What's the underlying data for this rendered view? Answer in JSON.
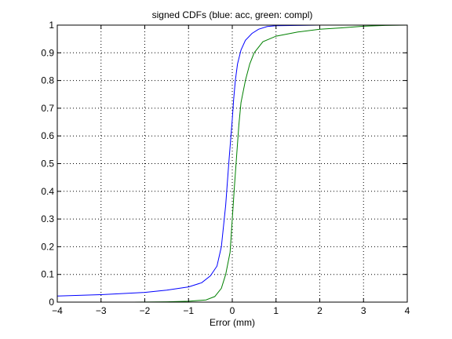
{
  "chart_data": {
    "type": "line",
    "title": "signed CDFs (blue: acc, green: compl)",
    "xlabel": "Error (mm)",
    "ylabel": "",
    "xlim": [
      -4,
      4
    ],
    "ylim": [
      0,
      1
    ],
    "xticks": [
      -4,
      -3,
      -2,
      -1,
      0,
      1,
      2,
      3,
      4
    ],
    "yticks": [
      0,
      0.1,
      0.2,
      0.3,
      0.4,
      0.5,
      0.6,
      0.7,
      0.8,
      0.9,
      1
    ],
    "grid": true,
    "colors": {
      "acc": "#0000ff",
      "compl": "#008000"
    },
    "series": [
      {
        "key": "acc",
        "color": "#0000ff",
        "x": [
          -4.0,
          -3.0,
          -2.0,
          -1.5,
          -1.0,
          -0.7,
          -0.5,
          -0.35,
          -0.25,
          -0.15,
          -0.08,
          -0.03,
          0.0,
          0.03,
          0.07,
          0.12,
          0.2,
          0.3,
          0.45,
          0.6,
          0.8,
          1.0,
          1.5,
          2.0,
          3.5
        ],
        "y": [
          0.022,
          0.027,
          0.035,
          0.043,
          0.055,
          0.07,
          0.095,
          0.13,
          0.2,
          0.35,
          0.5,
          0.6,
          0.66,
          0.73,
          0.8,
          0.86,
          0.91,
          0.945,
          0.97,
          0.985,
          0.995,
          0.998,
          0.999,
          1.0,
          1.0
        ]
      },
      {
        "key": "compl",
        "color": "#008000",
        "x": [
          -2.25,
          -1.5,
          -1.0,
          -0.6,
          -0.4,
          -0.25,
          -0.15,
          -0.05,
          0.0,
          0.05,
          0.1,
          0.15,
          0.2,
          0.3,
          0.4,
          0.5,
          0.7,
          1.0,
          1.5,
          2.0,
          2.5,
          3.0,
          3.5,
          4.0
        ],
        "y": [
          0.0,
          0.001,
          0.003,
          0.008,
          0.02,
          0.05,
          0.1,
          0.18,
          0.3,
          0.42,
          0.53,
          0.64,
          0.72,
          0.8,
          0.86,
          0.9,
          0.94,
          0.96,
          0.975,
          0.985,
          0.99,
          0.996,
          0.999,
          1.0
        ]
      }
    ]
  }
}
